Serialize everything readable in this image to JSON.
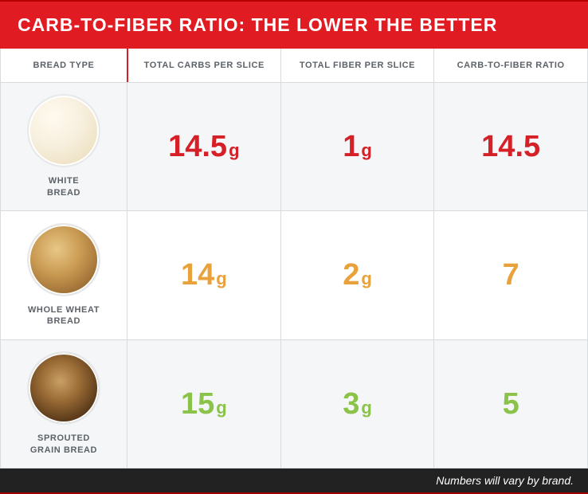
{
  "title": "CARB-TO-FIBER RATIO: THE LOWER THE BETTER",
  "caption": "Numbers will vary by brand.",
  "colors": {
    "title_bg": "#e11b22",
    "title_text": "#ffffff",
    "caption_bg": "#222222",
    "caption_text": "#ffffff",
    "row_red": "#d62027",
    "row_orange": "#e9a13b",
    "row_green": "#8bc34a",
    "header_text": "#5c6268",
    "grid_line": "#d8dbdd",
    "alt_bg": "#f4f6f7"
  },
  "columns": [
    "BREAD TYPE",
    "TOTAL CARBS PER SLICE",
    "TOTAL FIBER PER SLICE",
    "CARB-TO-FIBER RATIO"
  ],
  "rows": [
    {
      "label": "WHITE\nBREAD",
      "swatch_css": "radial-gradient(circle at 35% 30%, #fffaf0 0%, #f7efdd 45%, #ecdfbe 85%)",
      "color_key": "row_red",
      "carbs_num": "14.5",
      "carbs_unit": "g",
      "fiber_num": "1",
      "fiber_unit": "g",
      "ratio": "14.5",
      "alt": true
    },
    {
      "label": "WHOLE WHEAT\nBREAD",
      "swatch_css": "radial-gradient(circle at 40% 35%, #e8c787 0%, #c99a52 40%, #8a5b28 90%)",
      "color_key": "row_orange",
      "carbs_num": "14",
      "carbs_unit": "g",
      "fiber_num": "2",
      "fiber_unit": "g",
      "ratio": "7",
      "alt": false
    },
    {
      "label": "SPROUTED\nGRAIN BREAD",
      "swatch_css": "radial-gradient(circle at 45% 40%, #c9a066 0%, #9a6b35 35%, #5a3a1a 70%, #3a2410 100%)",
      "color_key": "row_green",
      "carbs_num": "15",
      "carbs_unit": "g",
      "fiber_num": "3",
      "fiber_unit": "g",
      "ratio": "5",
      "alt": true
    }
  ]
}
